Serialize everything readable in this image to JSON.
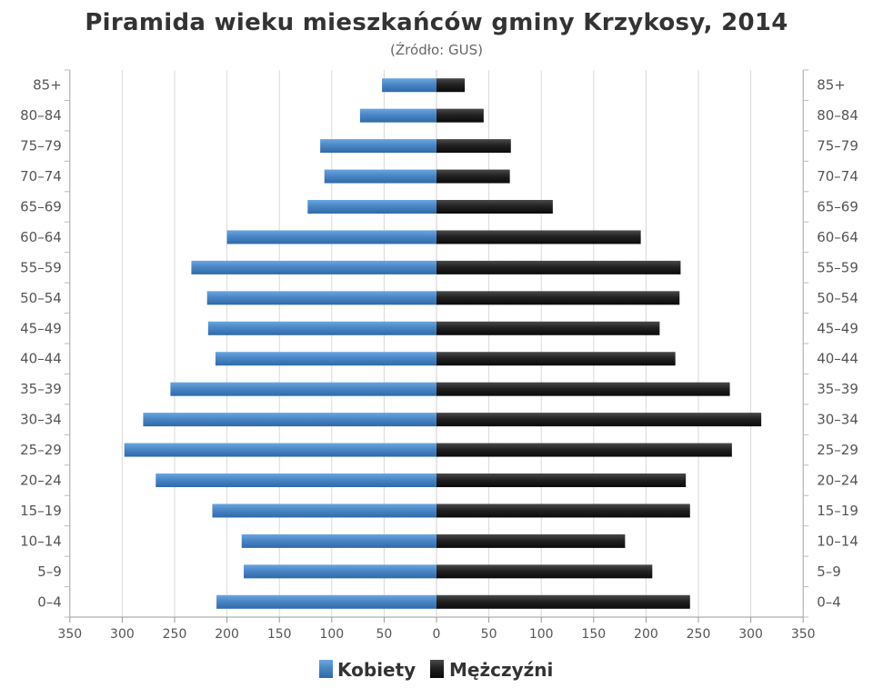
{
  "chart_data": {
    "type": "bar",
    "orientation": "horizontal-pyramid",
    "title": "Piramida wieku mieszkańców gminy Krzykosy, 2014",
    "subtitle": "(Źródło: GUS)",
    "categories": [
      "85+",
      "80–84",
      "75–79",
      "70–74",
      "65–69",
      "60–64",
      "55–59",
      "50–54",
      "45–49",
      "40–44",
      "35–39",
      "30–34",
      "25–29",
      "20–24",
      "15–19",
      "10–14",
      "5–9",
      "0–4"
    ],
    "series": [
      {
        "name": "Kobiety",
        "side": "left",
        "color": "#4a86c5",
        "values": [
          52,
          73,
          111,
          107,
          123,
          200,
          234,
          219,
          218,
          211,
          254,
          280,
          298,
          268,
          214,
          186,
          184,
          210
        ]
      },
      {
        "name": "Mężczyźni",
        "side": "right",
        "color": "#222222",
        "values": [
          27,
          45,
          71,
          70,
          111,
          195,
          233,
          232,
          213,
          228,
          280,
          310,
          282,
          238,
          242,
          180,
          206,
          242
        ]
      }
    ],
    "xlim": [
      -350,
      350
    ],
    "xticks": [
      "350",
      "300",
      "250",
      "200",
      "150",
      "100",
      "50",
      "0",
      "50",
      "100",
      "150",
      "200",
      "250",
      "300",
      "350"
    ],
    "grid": true,
    "legend_position": "bottom"
  },
  "colors": {
    "kobiety": "#4a86c5",
    "mezczyzni": "#222222",
    "grid": "#d9d9d9"
  }
}
